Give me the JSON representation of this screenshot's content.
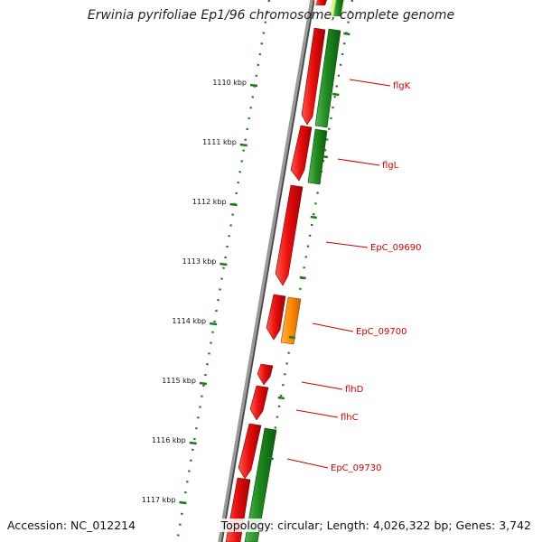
{
  "title": "Erwinia pyrifoliae Ep1/96 chromosome, complete genome",
  "accession": "Accession: NC_012214",
  "topology": "Topology: circular; Length: 4,026,322 bp; Genes: 3,742",
  "colors": {
    "backbone": "#8a8a8a",
    "gene_main": "#e8100f",
    "gene_main_dark": "#a00000",
    "gene_alt": "#1f8a1f",
    "gene_alt_dark": "#0e5a0e",
    "gene_orange": "#ff8c00",
    "label_red": "#cc0000",
    "tick_green": "#1a7a1a"
  },
  "ticks": [
    {
      "label": "1110 kbp"
    },
    {
      "label": "1111 kbp"
    },
    {
      "label": "1112 kbp"
    },
    {
      "label": "1113 kbp"
    },
    {
      "label": "1114 kbp"
    },
    {
      "label": "1115 kbp"
    },
    {
      "label": "1116 kbp"
    },
    {
      "label": "1117 kbp"
    }
  ],
  "gene_labels": [
    {
      "name": "flgK"
    },
    {
      "name": "flgL"
    },
    {
      "name": "EpC_09690"
    },
    {
      "name": "EpC_09700"
    },
    {
      "name": "flhD"
    },
    {
      "name": "flhC"
    },
    {
      "name": "EpC_09730"
    }
  ]
}
